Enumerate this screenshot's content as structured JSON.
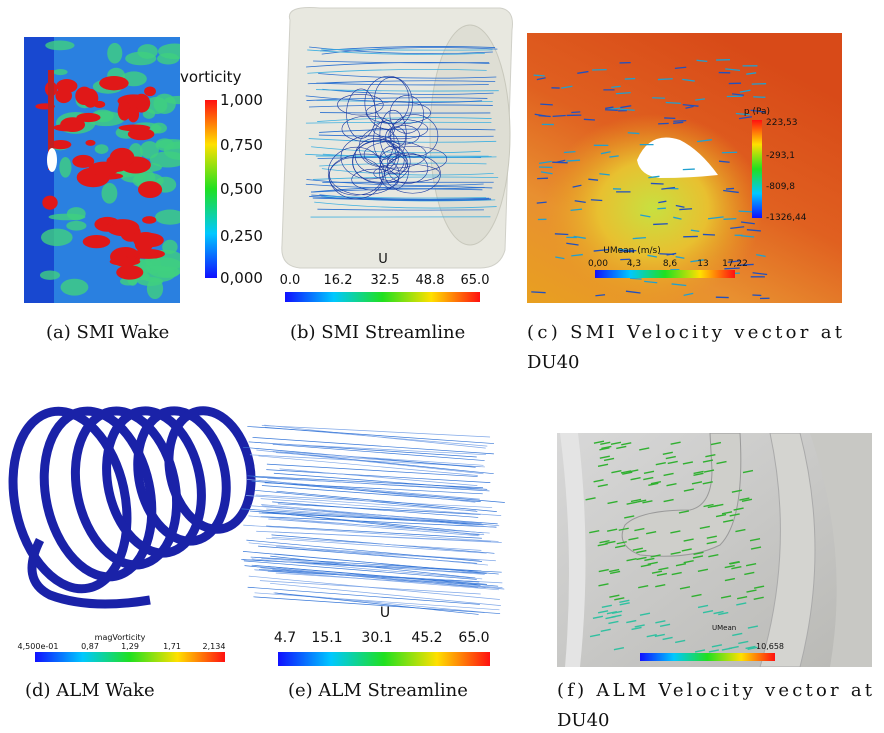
{
  "panels": [
    {
      "caption": [
        "(a) SMI Wake"
      ],
      "colorbars": [
        {
          "title": "vorticity",
          "ticks": [
            "1,000",
            "0,750",
            "0,500",
            "0,250",
            "0,000"
          ]
        }
      ]
    },
    {
      "caption": [
        "(b) SMI Streamline"
      ],
      "colorbars": [
        {
          "title": "U",
          "ticks": [
            "0.0",
            "16.2",
            "32.5",
            "48.8",
            "65.0"
          ]
        }
      ]
    },
    {
      "caption": [
        "(c) SMI Velocity vector at",
        "DU40"
      ],
      "colorbars": [
        {
          "title": "p (Pa)",
          "ticks": [
            "223,53",
            "-293,1",
            "-809,8",
            "-1326,44"
          ]
        },
        {
          "title": "UMean (m/s)",
          "ticks": [
            "0,00",
            "4,3",
            "8,6",
            "13",
            "17,22"
          ]
        }
      ]
    },
    {
      "caption": [
        "(d) ALM Wake"
      ],
      "colorbars": [
        {
          "title": "magVorticity",
          "ticks": [
            "4,500e-01",
            "0,87",
            "1,29",
            "1,71",
            "2,134"
          ]
        }
      ]
    },
    {
      "caption": [
        "(e) ALM Streamline"
      ],
      "colorbars": [
        {
          "title": "U",
          "ticks": [
            "4.7",
            "15.1",
            "30.1",
            "45.2",
            "65.0"
          ]
        }
      ]
    },
    {
      "caption": [
        "(f) ALM Velocity vector at",
        "DU40"
      ],
      "colorbars": [
        {
          "title": "UMean",
          "ticks": [
            "10,658"
          ]
        }
      ]
    }
  ]
}
